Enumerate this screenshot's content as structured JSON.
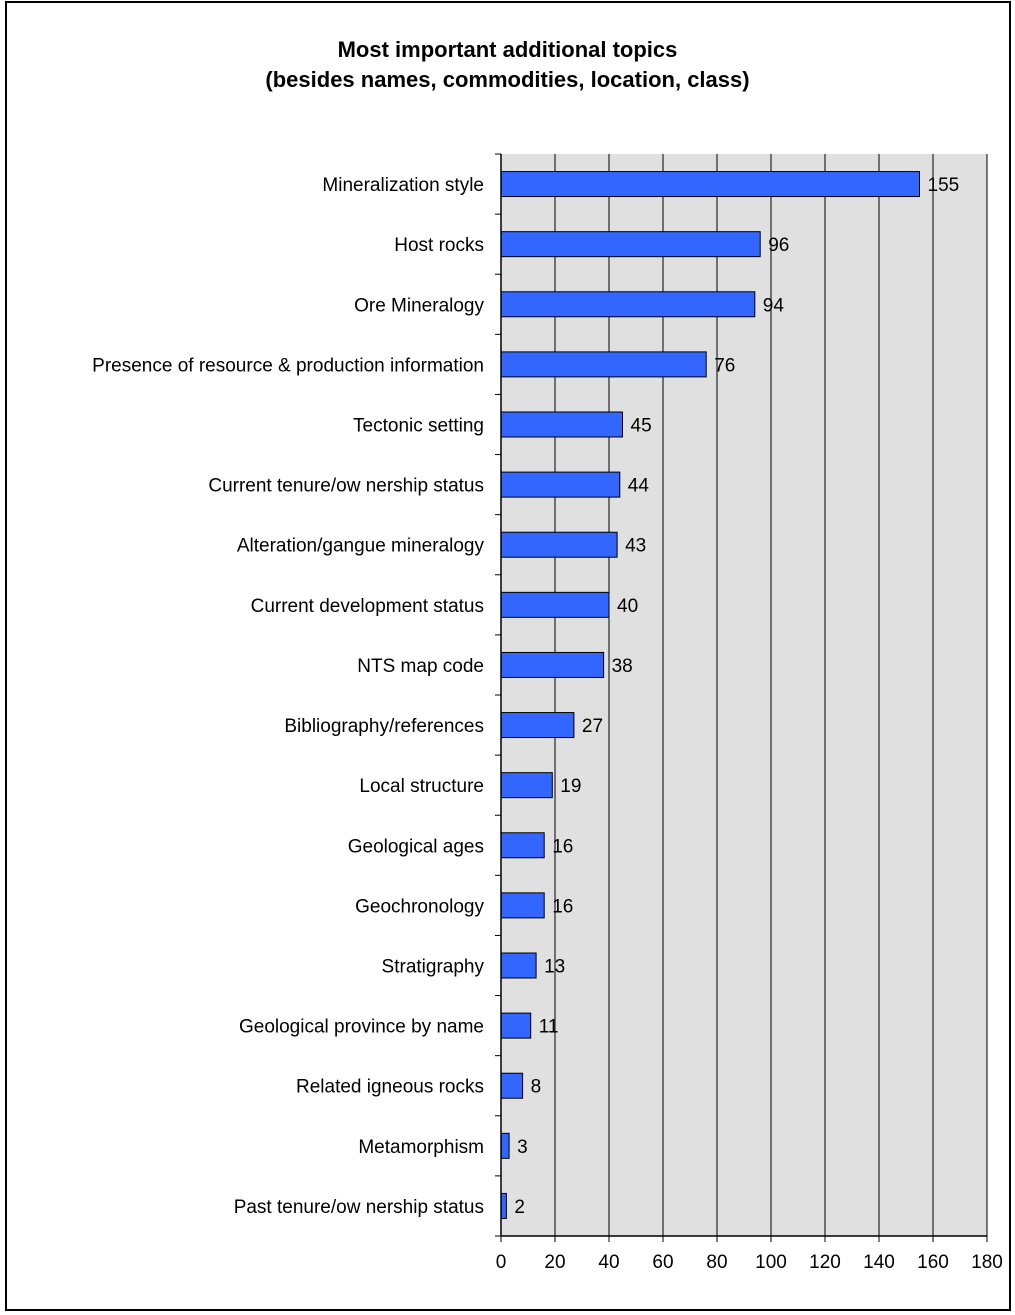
{
  "chart_data": {
    "type": "bar",
    "orientation": "horizontal",
    "title": "Most important additional topics",
    "subtitle": "(besides names, commodities, location, class)",
    "categories": [
      "Mineralization style",
      "Host rocks",
      "Ore Mineralogy",
      "Presence of resource & production information",
      "Tectonic setting",
      "Current tenure/ow nership status",
      "Alteration/gangue mineralogy",
      "Current development status",
      "NTS map code",
      "Bibliography/references",
      "Local structure",
      "Geological ages",
      "Geochronology",
      "Stratigraphy",
      "Geological province by name",
      "Related igneous rocks",
      "Metamorphism",
      "Past tenure/ow nership status"
    ],
    "values": [
      155,
      96,
      94,
      76,
      45,
      44,
      43,
      40,
      38,
      27,
      19,
      16,
      16,
      13,
      11,
      8,
      3,
      2
    ],
    "xlim": [
      0,
      180
    ],
    "xticks": [
      0,
      20,
      40,
      60,
      80,
      100,
      120,
      140,
      160,
      180
    ],
    "xlabel": "",
    "ylabel": "",
    "grid": "vertical",
    "legend": "none",
    "data_labels": true,
    "colors": {
      "bar": "#3366ff",
      "plot_background": "#e0e0e0",
      "gridline": "#000000"
    }
  }
}
